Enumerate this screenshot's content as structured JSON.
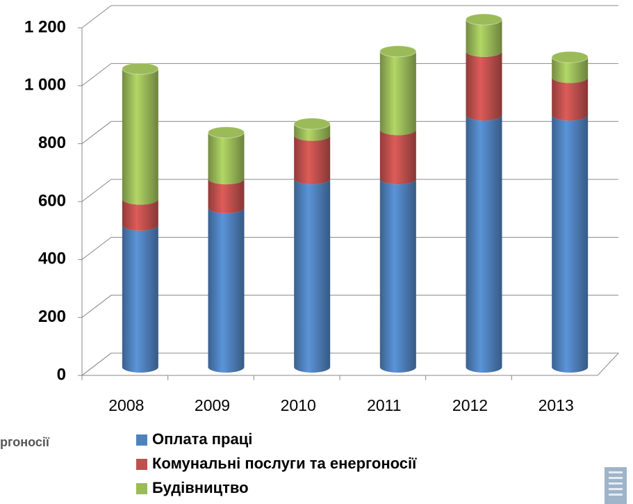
{
  "chart_data": {
    "type": "bar3d_stacked",
    "categories": [
      "2008",
      "2009",
      "2010",
      "2011",
      "2012",
      "2013"
    ],
    "series": [
      {
        "name": "Оплата праці",
        "color": "#4f81bd",
        "values": [
          490,
          550,
          650,
          650,
          870,
          870
        ]
      },
      {
        "name": "Комунальні послуги та енергоносії",
        "color": "#c0504d",
        "values": [
          90,
          100,
          150,
          170,
          220,
          130
        ]
      },
      {
        "name": "Будівництво",
        "color": "#9bbb59",
        "values": [
          450,
          160,
          40,
          270,
          110,
          70
        ]
      }
    ],
    "ylim": [
      0,
      1200
    ],
    "yticks": [
      0,
      200,
      400,
      600,
      800,
      {
        "value": 1000,
        "label": "1 000"
      },
      {
        "value": 1200,
        "label": "1 200"
      }
    ],
    "grid": true,
    "legend": "bottom",
    "annotations": [
      "ргоносії"
    ]
  }
}
